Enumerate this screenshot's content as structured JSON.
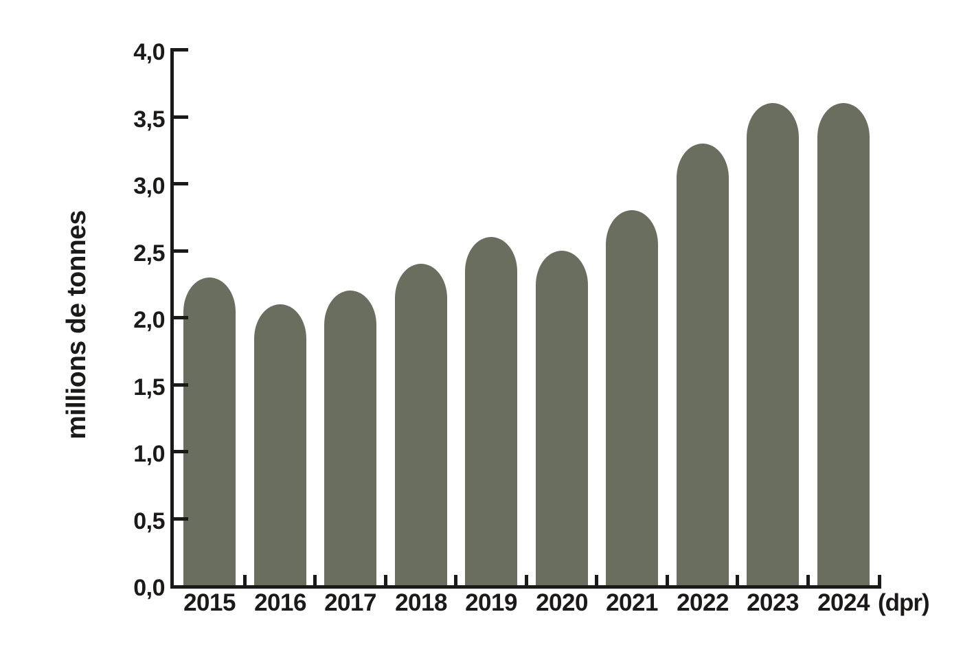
{
  "chart_data": {
    "type": "bar",
    "title": "",
    "xlabel": "",
    "ylabel": "millions de tonnes",
    "x_axis_suffix": "(dpr)",
    "categories": [
      "2015",
      "2016",
      "2017",
      "2018",
      "2019",
      "2020",
      "2021",
      "2022",
      "2023",
      "2024"
    ],
    "values": [
      2.3,
      2.1,
      2.2,
      2.4,
      2.6,
      2.5,
      2.8,
      3.3,
      3.6,
      3.6
    ],
    "ylim": [
      0,
      4.0
    ],
    "y_tick_step": 0.5,
    "y_tick_labels": [
      "0,0",
      "0,5",
      "1,0",
      "1,5",
      "2,0",
      "2,5",
      "3,0",
      "3,5",
      "4,0"
    ],
    "grid": false,
    "legend": "none",
    "colors": {
      "bar": "#6a6e5f",
      "axis": "#1c1a19",
      "text": "#1c1a19",
      "background": "#ffffff"
    }
  }
}
